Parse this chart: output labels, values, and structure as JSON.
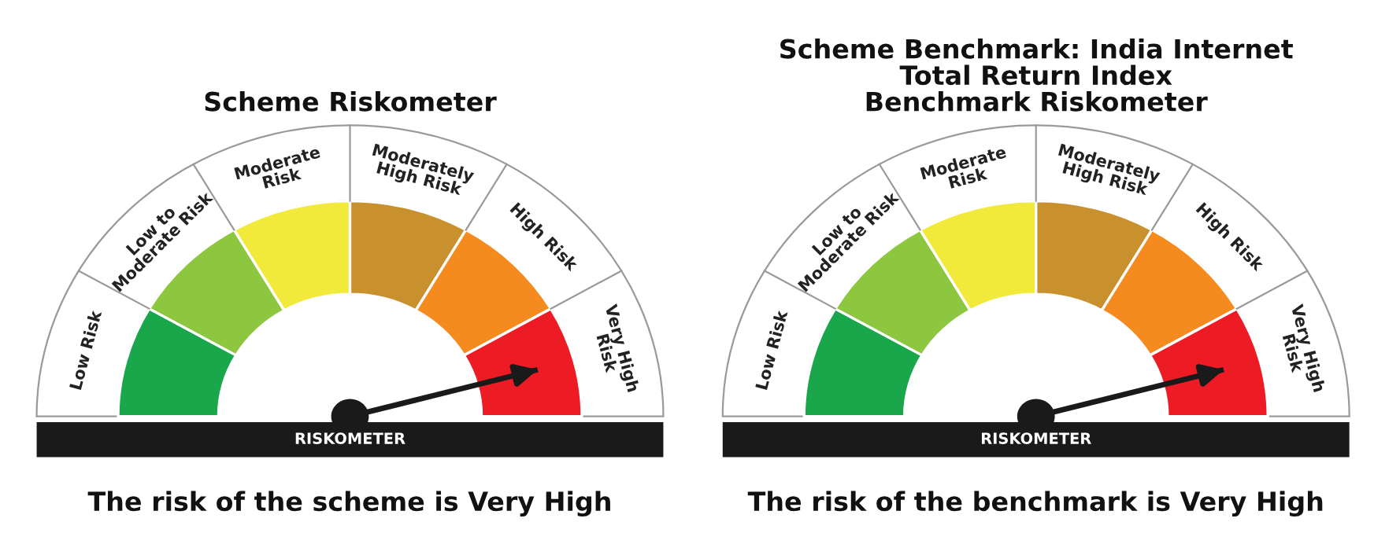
{
  "chart_data": [
    {
      "type": "donut",
      "title": "Scheme Riskometer",
      "categories": [
        "Low Risk",
        "Low to Moderate Risk",
        "Moderate Risk",
        "Moderately High Risk",
        "High Risk",
        "Very High Risk"
      ],
      "values": [
        16.67,
        16.67,
        16.66,
        16.67,
        16.67,
        16.66
      ],
      "colors": [
        "#1aa64a",
        "#8dc63f",
        "#f2ea3a",
        "#c9902e",
        "#f58a1f",
        "#ed1c24"
      ],
      "needle": "Very High Risk",
      "annotations": [
        "RISKOMETER",
        "The risk of the scheme is Very High"
      ]
    },
    {
      "type": "donut",
      "title": "Scheme Benchmark: India Internet\nTotal Return Index\nBenchmark Riskometer",
      "categories": [
        "Low Risk",
        "Low to Moderate Risk",
        "Moderate Risk",
        "Moderately High Risk",
        "High Risk",
        "Very High Risk"
      ],
      "values": [
        16.67,
        16.67,
        16.66,
        16.67,
        16.67,
        16.66
      ],
      "colors": [
        "#1aa64a",
        "#8dc63f",
        "#f2ea3a",
        "#c9902e",
        "#f58a1f",
        "#ed1c24"
      ],
      "needle": "Very High Risk",
      "annotations": [
        "RISKOMETER",
        "The risk of the benchmark is Very High"
      ]
    }
  ]
}
